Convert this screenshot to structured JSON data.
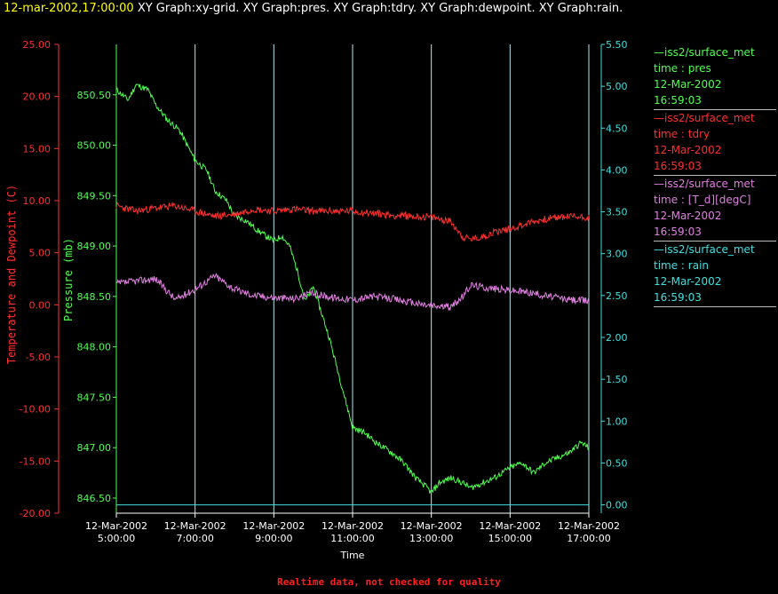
{
  "header": {
    "datetime": "12-mar-2002,17:00:00",
    "graphs": "XY Graph:xy-grid.  XY Graph:pres.  XY Graph:tdry.  XY Graph:dewpoint.  XY Graph:rain."
  },
  "footer": {
    "text": "Realtime data, not checked for quality",
    "color": "#ff2020"
  },
  "legend": [
    {
      "line": "—iss2/surface_met",
      "field": "time : pres",
      "date": "12-Mar-2002",
      "time": "16:59:03",
      "color": "#50ff50"
    },
    {
      "line": "—iss2/surface_met",
      "field": "time : tdry",
      "date": "12-Mar-2002",
      "time": "16:59:03",
      "color": "#ff3030"
    },
    {
      "line": "—iss2/surface_met",
      "field": "time : [T_d][degC]",
      "date": "12-Mar-2002",
      "time": "16:59:03",
      "color": "#e080e0"
    },
    {
      "line": "—iss2/surface_met",
      "field": "time : rain",
      "date": "12-Mar-2002",
      "time": "16:59:03",
      "color": "#40e0e0"
    }
  ],
  "chart_data": {
    "type": "line",
    "xlabel": "Time",
    "x_ticks": [
      {
        "h": 5,
        "date": "12-Mar-2002",
        "time": "5:00:00"
      },
      {
        "h": 7,
        "date": "12-Mar-2002",
        "time": "7:00:00"
      },
      {
        "h": 9,
        "date": "12-Mar-2002",
        "time": "9:00:00"
      },
      {
        "h": 11,
        "date": "12-Mar-2002",
        "time": "11:00:00"
      },
      {
        "h": 13,
        "date": "12-Mar-2002",
        "time": "13:00:00"
      },
      {
        "h": 15,
        "date": "12-Mar-2002",
        "time": "15:00:00"
      },
      {
        "h": 17,
        "date": "12-Mar-2002",
        "time": "17:00:00"
      }
    ],
    "xlim": [
      5,
      17
    ],
    "axes": {
      "temp": {
        "label": "Temperature and Dewpoint (C)",
        "ylim": [
          -20,
          25
        ],
        "color": "#ff3030",
        "ticks": [
          "-20.00",
          "-15.00",
          "-10.00",
          "-5.00",
          "0.00",
          "5.00",
          "10.00",
          "15.00",
          "20.00",
          "25.00"
        ]
      },
      "pres": {
        "label": "Pressure (mb)",
        "ylim": [
          846.35,
          851.0
        ],
        "color": "#50ff50",
        "ticks": [
          "846.50",
          "847.00",
          "847.50",
          "848.00",
          "848.50",
          "849.00",
          "849.50",
          "850.00",
          "850.50"
        ]
      },
      "rain": {
        "label": "",
        "ylim": [
          -0.1,
          5.5
        ],
        "color": "#40e0e0",
        "ticks": [
          "0.00",
          "0.50",
          "1.00",
          "1.50",
          "2.00",
          "2.50",
          "3.00",
          "3.50",
          "4.00",
          "4.50",
          "5.00",
          "5.50"
        ]
      }
    },
    "series": [
      {
        "name": "pres",
        "axis": "pres",
        "color": "#50ff50",
        "seed": 11,
        "jitter": 0.03,
        "x": [
          5.0,
          5.3,
          5.5,
          5.8,
          6.0,
          6.3,
          6.6,
          6.8,
          7.0,
          7.3,
          7.5,
          7.8,
          8.0,
          8.3,
          8.6,
          8.8,
          9.0,
          9.2,
          9.4,
          9.6,
          9.8,
          10.0,
          10.2,
          10.4,
          10.6,
          10.8,
          11.0,
          11.3,
          11.6,
          12.0,
          12.3,
          12.6,
          12.9,
          13.0,
          13.2,
          13.5,
          13.8,
          14.0,
          14.3,
          14.6,
          15.0,
          15.3,
          15.6,
          15.9,
          16.2,
          16.5,
          16.8,
          17.0
        ],
        "y": [
          850.55,
          850.45,
          850.6,
          850.55,
          850.4,
          850.25,
          850.15,
          850.0,
          849.85,
          849.75,
          849.55,
          849.45,
          849.3,
          849.25,
          849.15,
          849.1,
          849.05,
          849.1,
          849.0,
          848.75,
          848.45,
          848.6,
          848.35,
          848.1,
          847.8,
          847.5,
          847.2,
          847.15,
          847.05,
          846.95,
          846.85,
          846.7,
          846.6,
          846.55,
          846.65,
          846.7,
          846.65,
          846.6,
          846.65,
          846.7,
          846.8,
          846.85,
          846.75,
          846.85,
          846.9,
          846.95,
          847.05,
          847.0
        ]
      },
      {
        "name": "tdry",
        "axis": "temp",
        "color": "#ff3030",
        "seed": 23,
        "jitter": 0.35,
        "x": [
          5.0,
          5.5,
          6.0,
          6.5,
          7.0,
          7.5,
          8.0,
          8.5,
          9.0,
          9.5,
          10.0,
          11.0,
          12.0,
          13.0,
          13.5,
          13.8,
          14.0,
          14.3,
          14.6,
          15.0,
          15.5,
          16.0,
          16.5,
          17.0
        ],
        "y": [
          9.5,
          9.0,
          9.3,
          9.5,
          9.0,
          8.5,
          8.7,
          9.2,
          9.0,
          9.2,
          9.0,
          9.0,
          8.6,
          8.4,
          8.0,
          6.5,
          6.3,
          6.5,
          7.0,
          7.3,
          7.9,
          8.3,
          8.5,
          8.4
        ]
      },
      {
        "name": "dewpoint",
        "axis": "temp",
        "color": "#e080e0",
        "seed": 37,
        "jitter": 0.35,
        "x": [
          5.0,
          5.5,
          6.0,
          6.5,
          7.0,
          7.5,
          8.0,
          8.5,
          9.0,
          9.5,
          10.0,
          10.5,
          11.0,
          11.5,
          12.0,
          12.5,
          13.0,
          13.5,
          13.8,
          14.0,
          14.5,
          15.0,
          15.5,
          16.0,
          16.5,
          17.0
        ],
        "y": [
          2.0,
          2.3,
          2.5,
          0.5,
          1.5,
          2.8,
          1.5,
          0.9,
          0.7,
          0.6,
          1.1,
          0.7,
          0.5,
          0.8,
          0.6,
          0.2,
          -0.1,
          -0.2,
          0.8,
          1.9,
          1.6,
          1.4,
          1.2,
          0.8,
          0.5,
          0.4
        ]
      },
      {
        "name": "rain",
        "axis": "rain",
        "color": "#40e0e0",
        "seed": 0,
        "jitter": 0.0,
        "x": [
          5.0,
          17.0
        ],
        "y": [
          0.0,
          0.0
        ]
      }
    ]
  }
}
